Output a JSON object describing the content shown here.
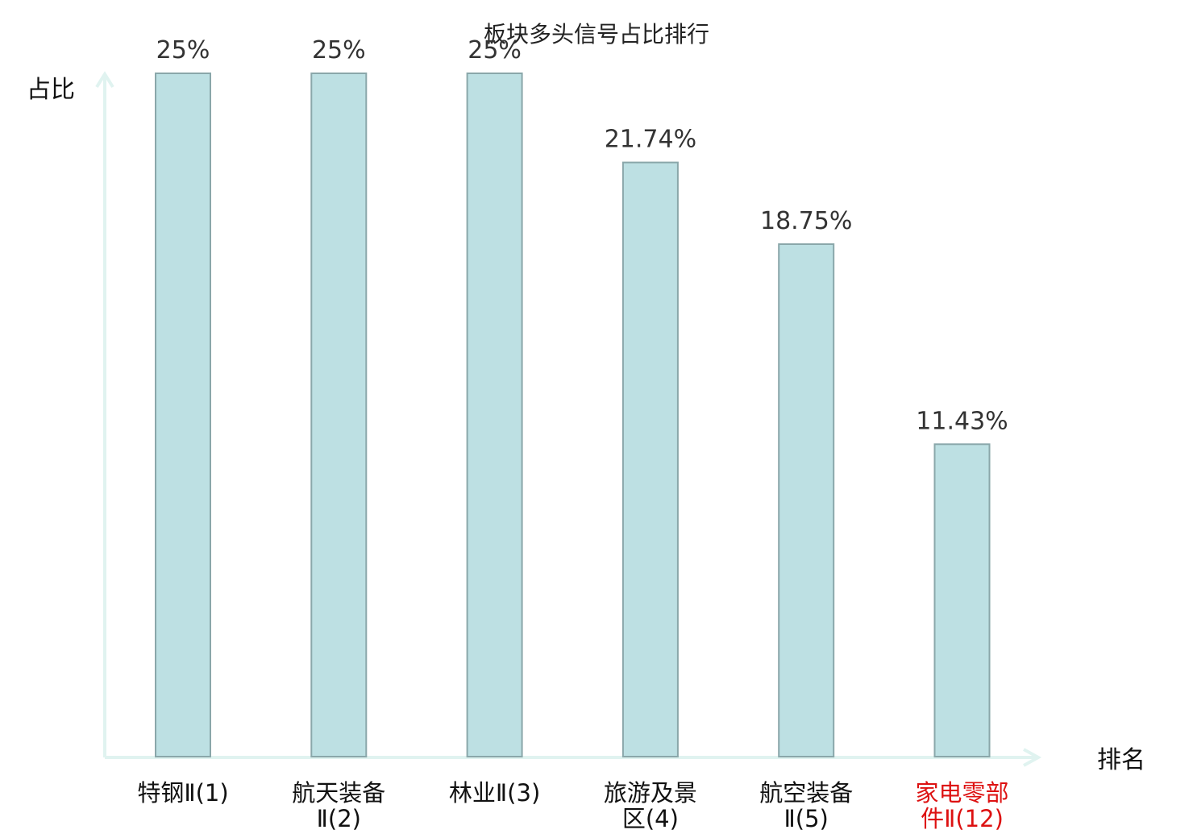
{
  "chart_data": {
    "type": "bar",
    "title": "板块多头信号占比排行",
    "xlabel": "排名",
    "ylabel": "占比",
    "categories": [
      {
        "lines": [
          "特钢Ⅱ(1)"
        ],
        "highlight": false
      },
      {
        "lines": [
          "航天装备",
          "Ⅱ(2)"
        ],
        "highlight": false
      },
      {
        "lines": [
          "林业Ⅱ(3)"
        ],
        "highlight": false
      },
      {
        "lines": [
          "旅游及景",
          "区(4)"
        ],
        "highlight": false
      },
      {
        "lines": [
          "航空装备",
          "Ⅱ(5)"
        ],
        "highlight": false
      },
      {
        "lines": [
          "家电零部",
          "件Ⅱ(12)"
        ],
        "highlight": true
      }
    ],
    "values": [
      25,
      25,
      25,
      21.74,
      18.75,
      11.43
    ],
    "value_labels": [
      "25%",
      "25%",
      "25%",
      "21.74%",
      "18.75%",
      "11.43%"
    ],
    "ylim": [
      0,
      25
    ],
    "grid": false,
    "colors": {
      "bar_fill": "#bde0e3",
      "bar_stroke": "#8aa7aa",
      "axis": "#e0f3f0",
      "label": "#111111",
      "highlight_label": "#dd1111"
    }
  }
}
